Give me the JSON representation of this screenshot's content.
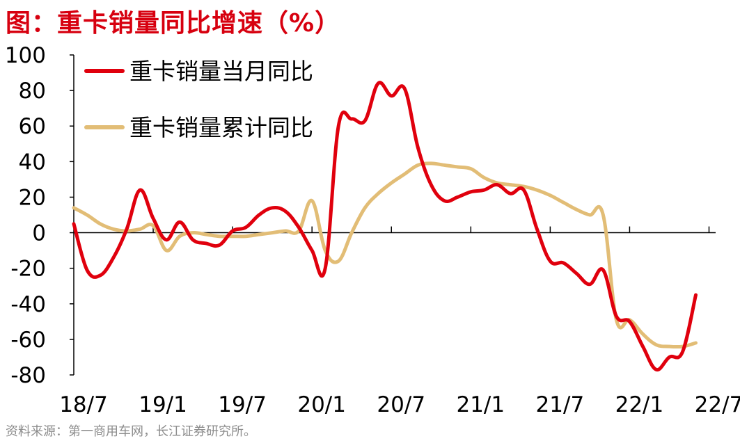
{
  "title": "图：重卡销量同比增速（%）",
  "source": "资料来源：第一商用车网，长江证券研究所。",
  "colors": {
    "title": "#d7000f",
    "monthly": "#e0000d",
    "cumulative": "#e2bd76",
    "source": "#8c8c8c"
  },
  "chart_data": {
    "type": "line",
    "title": "图：重卡销量同比增速（%）",
    "xlabel": "",
    "ylabel": "",
    "ylim": [
      -80,
      100
    ],
    "yticks": [
      "100",
      "80",
      "60",
      "40",
      "20",
      "0",
      "-20",
      "-40",
      "-60",
      "-80"
    ],
    "xtick_labels": [
      "18/7",
      "19/1",
      "19/7",
      "20/1",
      "20/7",
      "21/1",
      "21/7",
      "22/1",
      "22/7"
    ],
    "legend_position": "top-left",
    "grid": false,
    "x": [
      "18/7",
      "18/8",
      "18/9",
      "18/10",
      "18/11",
      "18/12",
      "19/1",
      "19/2",
      "19/3",
      "19/4",
      "19/5",
      "19/6",
      "19/7",
      "19/8",
      "19/9",
      "19/10",
      "19/11",
      "19/12",
      "20/1",
      "20/2",
      "20/3",
      "20/4",
      "20/5",
      "20/6",
      "20/7",
      "20/8",
      "20/9",
      "20/10",
      "20/11",
      "20/12",
      "21/1",
      "21/2",
      "21/3",
      "21/4",
      "21/5",
      "21/6",
      "21/7",
      "21/8",
      "21/9",
      "21/10",
      "21/11",
      "21/12",
      "22/1",
      "22/2",
      "22/3",
      "22/4",
      "22/5",
      "22/6",
      "22/7"
    ],
    "series": [
      {
        "name": "重卡销量当月同比",
        "values": [
          5,
          -21,
          -24,
          -14,
          2,
          24,
          8,
          -4,
          6,
          -4,
          -6,
          -7,
          1,
          3,
          10,
          14,
          12,
          3,
          -10,
          -20,
          60,
          64,
          63,
          84,
          77,
          81,
          48,
          27,
          18,
          20,
          23,
          24,
          27,
          22,
          24,
          2,
          -16,
          -17,
          -23,
          -29,
          -21,
          -47,
          -50,
          -64,
          -77,
          -70,
          -67,
          -35,
          -35
        ]
      },
      {
        "name": "重卡销量累计同比",
        "values": [
          14,
          10,
          5,
          2,
          1,
          2,
          4,
          -10,
          -2,
          0,
          -1,
          -2,
          -2,
          -2,
          -1,
          0,
          1,
          1,
          18,
          -10,
          -16,
          0,
          14,
          22,
          28,
          33,
          38,
          39,
          38,
          37,
          36,
          31,
          28,
          27,
          26,
          24,
          21,
          17,
          13,
          10,
          10,
          -49,
          -49,
          -57,
          -63,
          -64,
          -64,
          -62,
          -62
        ]
      }
    ]
  }
}
